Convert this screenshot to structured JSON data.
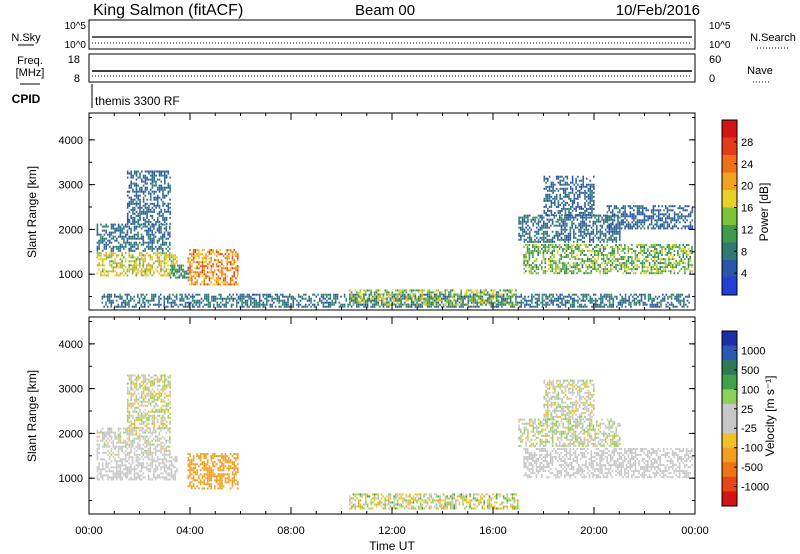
{
  "header": {
    "station": "King Salmon (fitACF)",
    "beam": "Beam 00",
    "date": "10/Feb/2016"
  },
  "status_panels": {
    "nsky_label": "N.Sky",
    "nsky_ticks": [
      "10^5",
      "10^0"
    ],
    "nsearch_label": "N.Search",
    "nsearch_ticks": [
      "10^5",
      "10^0"
    ],
    "freq_label": "Freq.",
    "freq_unit": "[MHz]",
    "freq_ticks": [
      "18",
      "8"
    ],
    "nave_label": "Nave",
    "nave_ticks": [
      "60",
      "0"
    ],
    "cpid_label": "CPID",
    "cpid_text": "themis 3300 RF"
  },
  "colors": {
    "power": [
      "#1f3fd8",
      "#2a55a8",
      "#2f7a73",
      "#3f9b4c",
      "#7cc33a",
      "#e8d028",
      "#f2a21e",
      "#f0701a",
      "#e23b1a",
      "#d41414"
    ],
    "velocity": [
      "#1a2fa8",
      "#2a58b8",
      "#2f7a55",
      "#3da24a",
      "#8fd05a",
      "#c8c8c8",
      "#c8c8c8",
      "#f2c12a",
      "#f29e1f",
      "#ee7417",
      "#e8451a",
      "#d41414"
    ]
  },
  "chart_data": [
    {
      "type": "heatmap",
      "name": "power",
      "ylabel": "Slant Range [km]",
      "yticks": [
        "4000",
        "3000",
        "2000",
        "1000"
      ],
      "ylim": [
        200,
        4600
      ],
      "xlim": [
        0,
        24
      ],
      "colorbar_label": "Power [dB]",
      "colorbar_ticks": [
        "28",
        "24",
        "20",
        "16",
        "12",
        "8",
        "4"
      ],
      "colorbar_range": [
        0,
        32
      ],
      "regions": [
        {
          "t": [
            0.3,
            3.5
          ],
          "r": [
            950,
            1450
          ],
          "v": [
            12,
            22
          ]
        },
        {
          "t": [
            0.3,
            3.2
          ],
          "r": [
            1500,
            2100
          ],
          "v": [
            4,
            10
          ]
        },
        {
          "t": [
            1.5,
            3.2
          ],
          "r": [
            2100,
            3300
          ],
          "v": [
            4,
            8
          ]
        },
        {
          "t": [
            3.9,
            5.9
          ],
          "r": [
            750,
            1550
          ],
          "v": [
            16,
            28
          ]
        },
        {
          "t": [
            3.2,
            3.9
          ],
          "r": [
            900,
            1200
          ],
          "v": [
            6,
            12
          ]
        },
        {
          "t": [
            17.2,
            23.9
          ],
          "r": [
            1000,
            1650
          ],
          "v": [
            8,
            18
          ]
        },
        {
          "t": [
            17.0,
            21.0
          ],
          "r": [
            1700,
            2300
          ],
          "v": [
            4,
            10
          ]
        },
        {
          "t": [
            18.0,
            20.0
          ],
          "r": [
            2300,
            3200
          ],
          "v": [
            4,
            8
          ]
        },
        {
          "t": [
            20.5,
            23.9
          ],
          "r": [
            2000,
            2500
          ],
          "v": [
            4,
            8
          ]
        },
        {
          "t": [
            0.5,
            23.8
          ],
          "r": [
            250,
            550
          ],
          "v": [
            4,
            10
          ]
        },
        {
          "t": [
            10.3,
            17.0
          ],
          "r": [
            300,
            650
          ],
          "v": [
            8,
            20
          ]
        }
      ]
    },
    {
      "type": "heatmap",
      "name": "velocity",
      "ylabel": "Slant Range [km]",
      "yticks": [
        "4000",
        "3000",
        "2000",
        "1000"
      ],
      "ylim": [
        200,
        4600
      ],
      "xlim": [
        0,
        24
      ],
      "xlabel": "Time UT",
      "xticks": [
        "00:00",
        "04:00",
        "08:00",
        "12:00",
        "16:00",
        "20:00",
        "00:00"
      ],
      "colorbar_label": "Velocity [m s⁻¹]",
      "colorbar_ticks": [
        "1000",
        "500",
        "100",
        "25",
        "-25",
        "-100",
        "-500",
        "-1000"
      ],
      "regions": [
        {
          "t": [
            0.3,
            3.5
          ],
          "r": [
            950,
            1450
          ],
          "v": [
            -20,
            20
          ]
        },
        {
          "t": [
            0.3,
            3.2
          ],
          "r": [
            1500,
            2100
          ],
          "v": [
            -30,
            30
          ]
        },
        {
          "t": [
            1.5,
            3.2
          ],
          "r": [
            2100,
            3300
          ],
          "v": [
            -60,
            60
          ]
        },
        {
          "t": [
            3.9,
            5.9
          ],
          "r": [
            750,
            1550
          ],
          "v": [
            -350,
            -120
          ]
        },
        {
          "t": [
            17.2,
            23.9
          ],
          "r": [
            1000,
            1650
          ],
          "v": [
            -20,
            20
          ]
        },
        {
          "t": [
            17.0,
            21.0
          ],
          "r": [
            1700,
            2300
          ],
          "v": [
            -40,
            60
          ]
        },
        {
          "t": [
            18.0,
            20.0
          ],
          "r": [
            2300,
            3200
          ],
          "v": [
            -40,
            40
          ]
        },
        {
          "t": [
            10.3,
            17.0
          ],
          "r": [
            300,
            650
          ],
          "v": [
            -120,
            120
          ]
        }
      ]
    }
  ]
}
